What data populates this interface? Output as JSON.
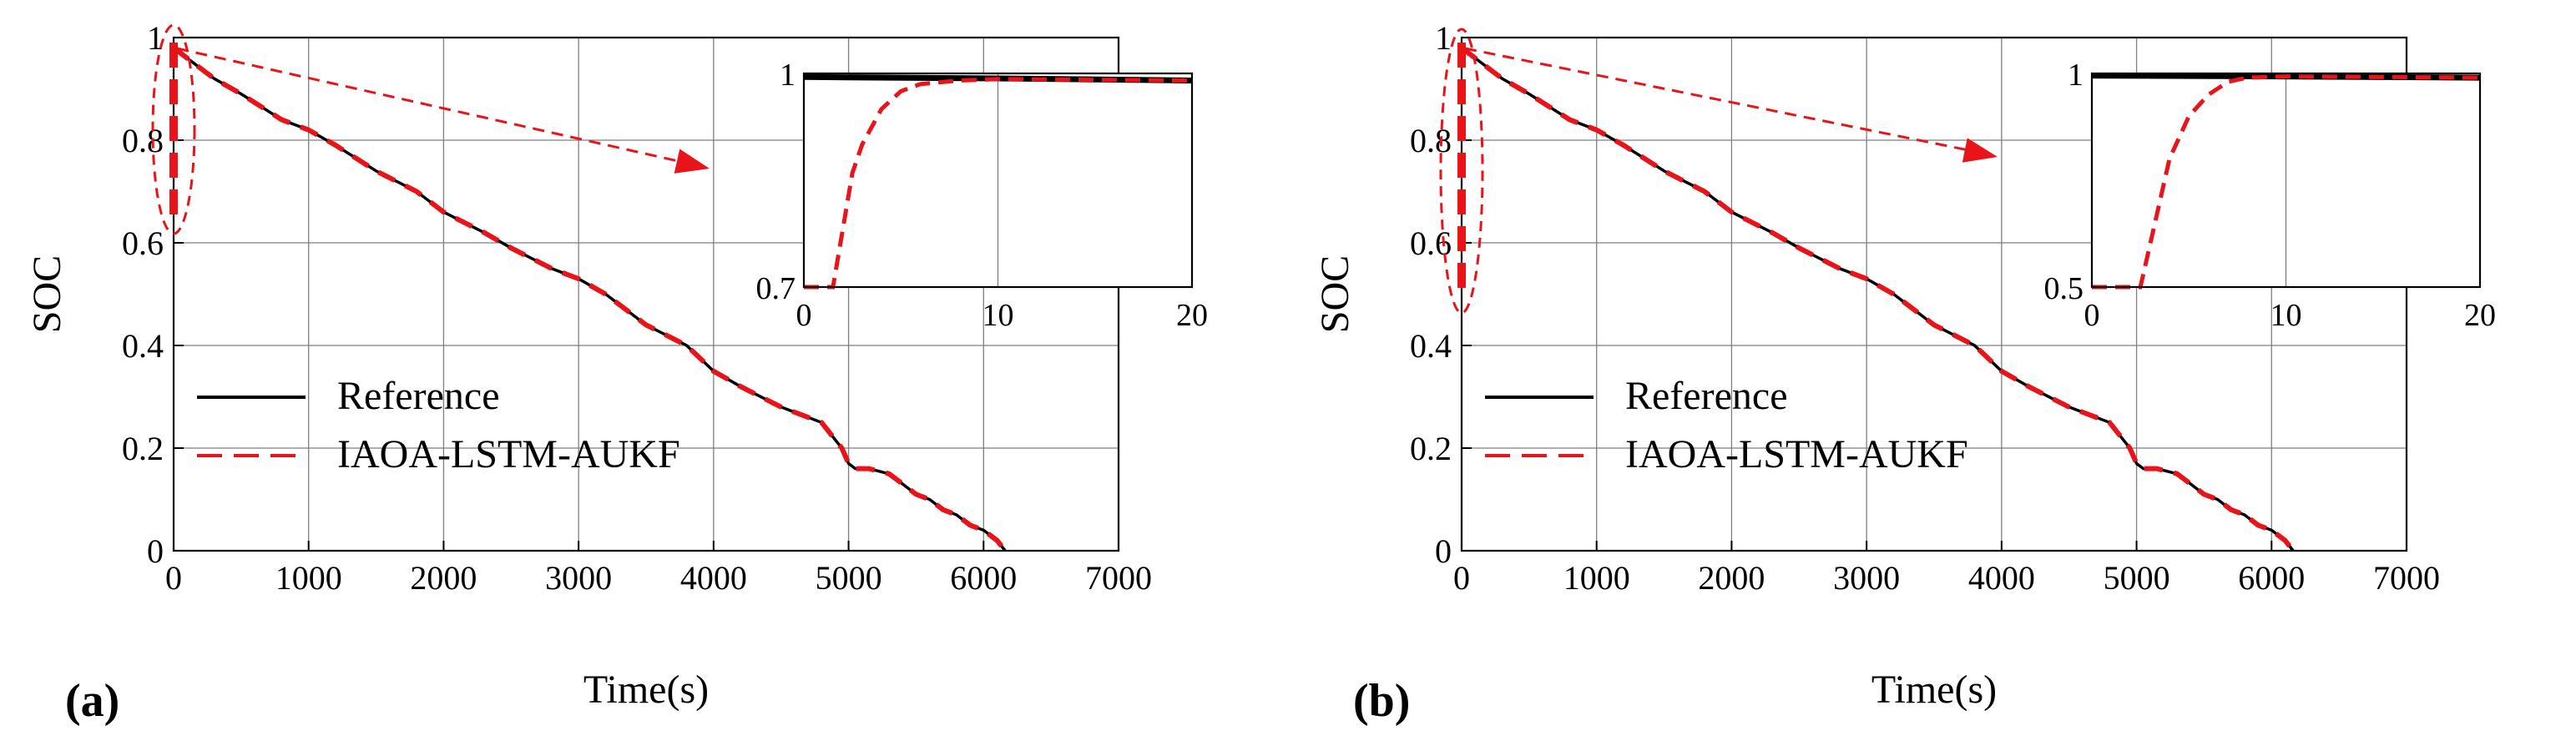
{
  "colors": {
    "reference": "#000000",
    "estimate": "#e8141a",
    "grid": "#7f7f7f"
  },
  "chart_data": [
    {
      "type": "line",
      "panel_label": "(a)",
      "xlabel": "Time(s)",
      "ylabel": "SOC",
      "xlim": [
        0,
        7000
      ],
      "ylim": [
        0,
        1
      ],
      "xticks": [
        "0",
        "1000",
        "2000",
        "3000",
        "4000",
        "5000",
        "6000",
        "7000"
      ],
      "yticks": [
        "0",
        "0.2",
        "0.4",
        "0.6",
        "0.8",
        "1"
      ],
      "grid": true,
      "legend_location": "lower-left",
      "series": [
        {
          "name": "Reference",
          "style": "solid",
          "x": [
            0,
            300,
            500,
            800,
            1000,
            1200,
            1500,
            1800,
            2000,
            2300,
            2500,
            2800,
            3000,
            3200,
            3500,
            3800,
            4000,
            4200,
            4500,
            4800,
            4950,
            5000,
            5050,
            5150,
            5300,
            5400,
            5500,
            5600,
            5700,
            5800,
            5900,
            6000,
            6100,
            6160
          ],
          "y": [
            0.98,
            0.92,
            0.89,
            0.84,
            0.82,
            0.79,
            0.74,
            0.7,
            0.66,
            0.62,
            0.59,
            0.55,
            0.53,
            0.5,
            0.44,
            0.4,
            0.35,
            0.32,
            0.28,
            0.25,
            0.2,
            0.17,
            0.16,
            0.16,
            0.15,
            0.13,
            0.11,
            0.1,
            0.08,
            0.07,
            0.05,
            0.04,
            0.02,
            0.0
          ]
        },
        {
          "name": "IAOA-LSTM-AUKF",
          "style": "dashed",
          "x": [
            0,
            300,
            500,
            800,
            1000,
            1200,
            1500,
            1800,
            2000,
            2300,
            2500,
            2800,
            3000,
            3200,
            3500,
            3800,
            4000,
            4200,
            4500,
            4800,
            4950,
            5000,
            5050,
            5150,
            5300,
            5400,
            5500,
            5600,
            5700,
            5800,
            5900,
            6000,
            6100,
            6160
          ],
          "y": [
            0.98,
            0.92,
            0.89,
            0.84,
            0.82,
            0.79,
            0.74,
            0.7,
            0.66,
            0.62,
            0.59,
            0.55,
            0.53,
            0.5,
            0.44,
            0.4,
            0.35,
            0.32,
            0.28,
            0.25,
            0.2,
            0.17,
            0.16,
            0.16,
            0.15,
            0.13,
            0.11,
            0.1,
            0.08,
            0.07,
            0.05,
            0.04,
            0.02,
            0.0
          ]
        }
      ],
      "inset": {
        "xlim": [
          0,
          20
        ],
        "ylim": [
          0.7,
          1
        ],
        "xticks": [
          "0",
          "10",
          "20"
        ],
        "yticks": [
          "0.7",
          "1"
        ],
        "series": [
          {
            "name": "Reference",
            "x": [
              0,
              10,
              20
            ],
            "y": [
              0.995,
              0.993,
              0.99
            ]
          },
          {
            "name": "IAOA-LSTM-AUKF",
            "x": [
              0,
              1.5,
              2,
              2.5,
              3,
              4,
              5,
              6,
              8,
              10,
              20
            ],
            "y": [
              0.7,
              0.7,
              0.78,
              0.86,
              0.9,
              0.95,
              0.975,
              0.985,
              0.99,
              0.992,
              0.99
            ]
          }
        ]
      }
    },
    {
      "type": "line",
      "panel_label": "(b)",
      "xlabel": "Time(s)",
      "ylabel": "SOC",
      "xlim": [
        0,
        7000
      ],
      "ylim": [
        0,
        1
      ],
      "xticks": [
        "0",
        "1000",
        "2000",
        "3000",
        "4000",
        "5000",
        "6000",
        "7000"
      ],
      "yticks": [
        "0",
        "0.2",
        "0.4",
        "0.6",
        "0.8",
        "1"
      ],
      "grid": true,
      "legend_location": "lower-left",
      "series": [
        {
          "name": "Reference",
          "style": "solid",
          "x": [
            0,
            300,
            500,
            800,
            1000,
            1200,
            1500,
            1800,
            2000,
            2300,
            2500,
            2800,
            3000,
            3200,
            3500,
            3800,
            4000,
            4200,
            4500,
            4800,
            4950,
            5000,
            5050,
            5150,
            5300,
            5400,
            5500,
            5600,
            5700,
            5800,
            5900,
            6000,
            6100,
            6160
          ],
          "y": [
            0.98,
            0.92,
            0.89,
            0.84,
            0.82,
            0.79,
            0.74,
            0.7,
            0.66,
            0.62,
            0.59,
            0.55,
            0.53,
            0.5,
            0.44,
            0.4,
            0.35,
            0.32,
            0.28,
            0.25,
            0.2,
            0.17,
            0.16,
            0.16,
            0.15,
            0.13,
            0.11,
            0.1,
            0.08,
            0.07,
            0.05,
            0.04,
            0.02,
            0.0
          ]
        },
        {
          "name": "IAOA-LSTM-AUKF",
          "style": "dashed",
          "x": [
            0,
            300,
            500,
            800,
            1000,
            1200,
            1500,
            1800,
            2000,
            2300,
            2500,
            2800,
            3000,
            3200,
            3500,
            3800,
            4000,
            4200,
            4500,
            4800,
            4950,
            5000,
            5050,
            5150,
            5300,
            5400,
            5500,
            5600,
            5700,
            5800,
            5900,
            6000,
            6100,
            6160
          ],
          "y": [
            0.98,
            0.92,
            0.89,
            0.84,
            0.82,
            0.79,
            0.74,
            0.7,
            0.66,
            0.62,
            0.59,
            0.55,
            0.53,
            0.5,
            0.44,
            0.4,
            0.35,
            0.32,
            0.28,
            0.25,
            0.2,
            0.17,
            0.16,
            0.16,
            0.15,
            0.13,
            0.11,
            0.1,
            0.08,
            0.07,
            0.05,
            0.04,
            0.02,
            0.0
          ]
        }
      ],
      "inset": {
        "xlim": [
          0,
          20
        ],
        "ylim": [
          0.5,
          1
        ],
        "xticks": [
          "0",
          "10",
          "20"
        ],
        "yticks": [
          "0.5",
          "1"
        ],
        "series": [
          {
            "name": "Reference",
            "x": [
              0,
              10,
              20
            ],
            "y": [
              0.995,
              0.993,
              0.99
            ]
          },
          {
            "name": "IAOA-LSTM-AUKF",
            "x": [
              0,
              2.5,
              3,
              3.5,
              4,
              5,
              6,
              7,
              8,
              10,
              20
            ],
            "y": [
              0.5,
              0.5,
              0.6,
              0.7,
              0.8,
              0.9,
              0.95,
              0.98,
              0.99,
              0.993,
              0.99
            ]
          }
        ]
      }
    }
  ]
}
